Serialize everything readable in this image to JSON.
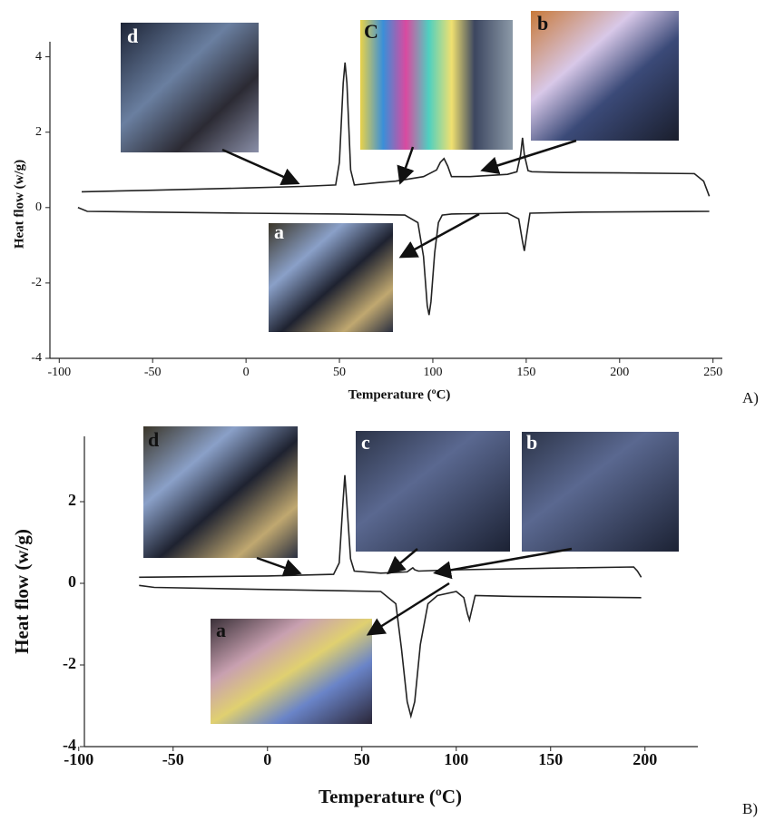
{
  "chart_data": [
    {
      "type": "line",
      "panel_label": "A)",
      "x_label": "Temperature (ºC)",
      "y_label": "Heat flow (w/g)",
      "annotations": [
        "d",
        "C",
        "b",
        "a"
      ],
      "xlim": [
        -105,
        255
      ],
      "ylim": [
        -4,
        4.4
      ],
      "xticks": [
        -100,
        -50,
        0,
        50,
        100,
        150,
        200,
        250
      ],
      "yticks": [
        -4,
        -2,
        0,
        2,
        4
      ],
      "series": [
        {
          "color": "#222222",
          "x": [
            -88,
            -50,
            0,
            30,
            48,
            50,
            52,
            53,
            54,
            56,
            58,
            70,
            80,
            95,
            102,
            104,
            106,
            108,
            110,
            120,
            140,
            145,
            147,
            148,
            149,
            151,
            153,
            170,
            200,
            240,
            245,
            248
          ],
          "values": [
            0.42,
            0.46,
            0.52,
            0.56,
            0.6,
            1.2,
            3.3,
            3.85,
            3.3,
            1.0,
            0.6,
            0.66,
            0.7,
            0.82,
            1.0,
            1.2,
            1.3,
            1.1,
            0.82,
            0.82,
            0.88,
            0.95,
            1.4,
            1.85,
            1.4,
            0.98,
            0.95,
            0.93,
            0.92,
            0.9,
            0.7,
            0.3
          ]
        },
        {
          "color": "#222222",
          "x": [
            -90,
            -85,
            -50,
            0,
            50,
            85,
            92,
            95,
            97,
            98,
            99,
            101,
            103,
            105,
            110,
            140,
            146,
            148,
            149,
            150,
            152,
            180,
            248
          ],
          "values": [
            0.0,
            -0.1,
            -0.12,
            -0.15,
            -0.17,
            -0.2,
            -0.4,
            -1.3,
            -2.6,
            -2.85,
            -2.5,
            -1.2,
            -0.4,
            -0.2,
            -0.17,
            -0.15,
            -0.3,
            -0.9,
            -1.15,
            -0.8,
            -0.15,
            -0.12,
            -0.1
          ]
        }
      ]
    },
    {
      "type": "line",
      "panel_label": "B)",
      "x_label": "Temperature (ºC)",
      "y_label": "Heat flow (w/g)",
      "annotations": [
        "d",
        "c",
        "b",
        "a"
      ],
      "xlim": [
        -97,
        228
      ],
      "ylim": [
        -4,
        3.6
      ],
      "xticks": [
        -100,
        -50,
        0,
        50,
        100,
        150,
        200
      ],
      "yticks": [
        -4,
        -2,
        0,
        2
      ],
      "series": [
        {
          "color": "#222222",
          "x": [
            -68,
            0,
            35,
            38,
            40,
            41,
            42,
            44,
            46,
            60,
            74,
            76,
            77,
            78,
            80,
            100,
            150,
            194,
            196,
            198
          ],
          "values": [
            0.15,
            0.18,
            0.22,
            0.5,
            2.0,
            2.65,
            2.0,
            0.6,
            0.3,
            0.25,
            0.28,
            0.35,
            0.38,
            0.33,
            0.3,
            0.33,
            0.37,
            0.4,
            0.3,
            0.15
          ]
        },
        {
          "color": "#222222",
          "x": [
            -68,
            -60,
            0,
            60,
            68,
            71,
            74,
            76,
            78,
            81,
            85,
            90,
            100,
            104,
            106,
            107,
            108,
            110,
            130,
            198
          ],
          "values": [
            -0.05,
            -0.1,
            -0.15,
            -0.2,
            -0.5,
            -1.6,
            -2.9,
            -3.25,
            -2.9,
            -1.5,
            -0.5,
            -0.3,
            -0.2,
            -0.35,
            -0.75,
            -0.9,
            -0.7,
            -0.3,
            -0.32,
            -0.35
          ]
        }
      ]
    }
  ]
}
